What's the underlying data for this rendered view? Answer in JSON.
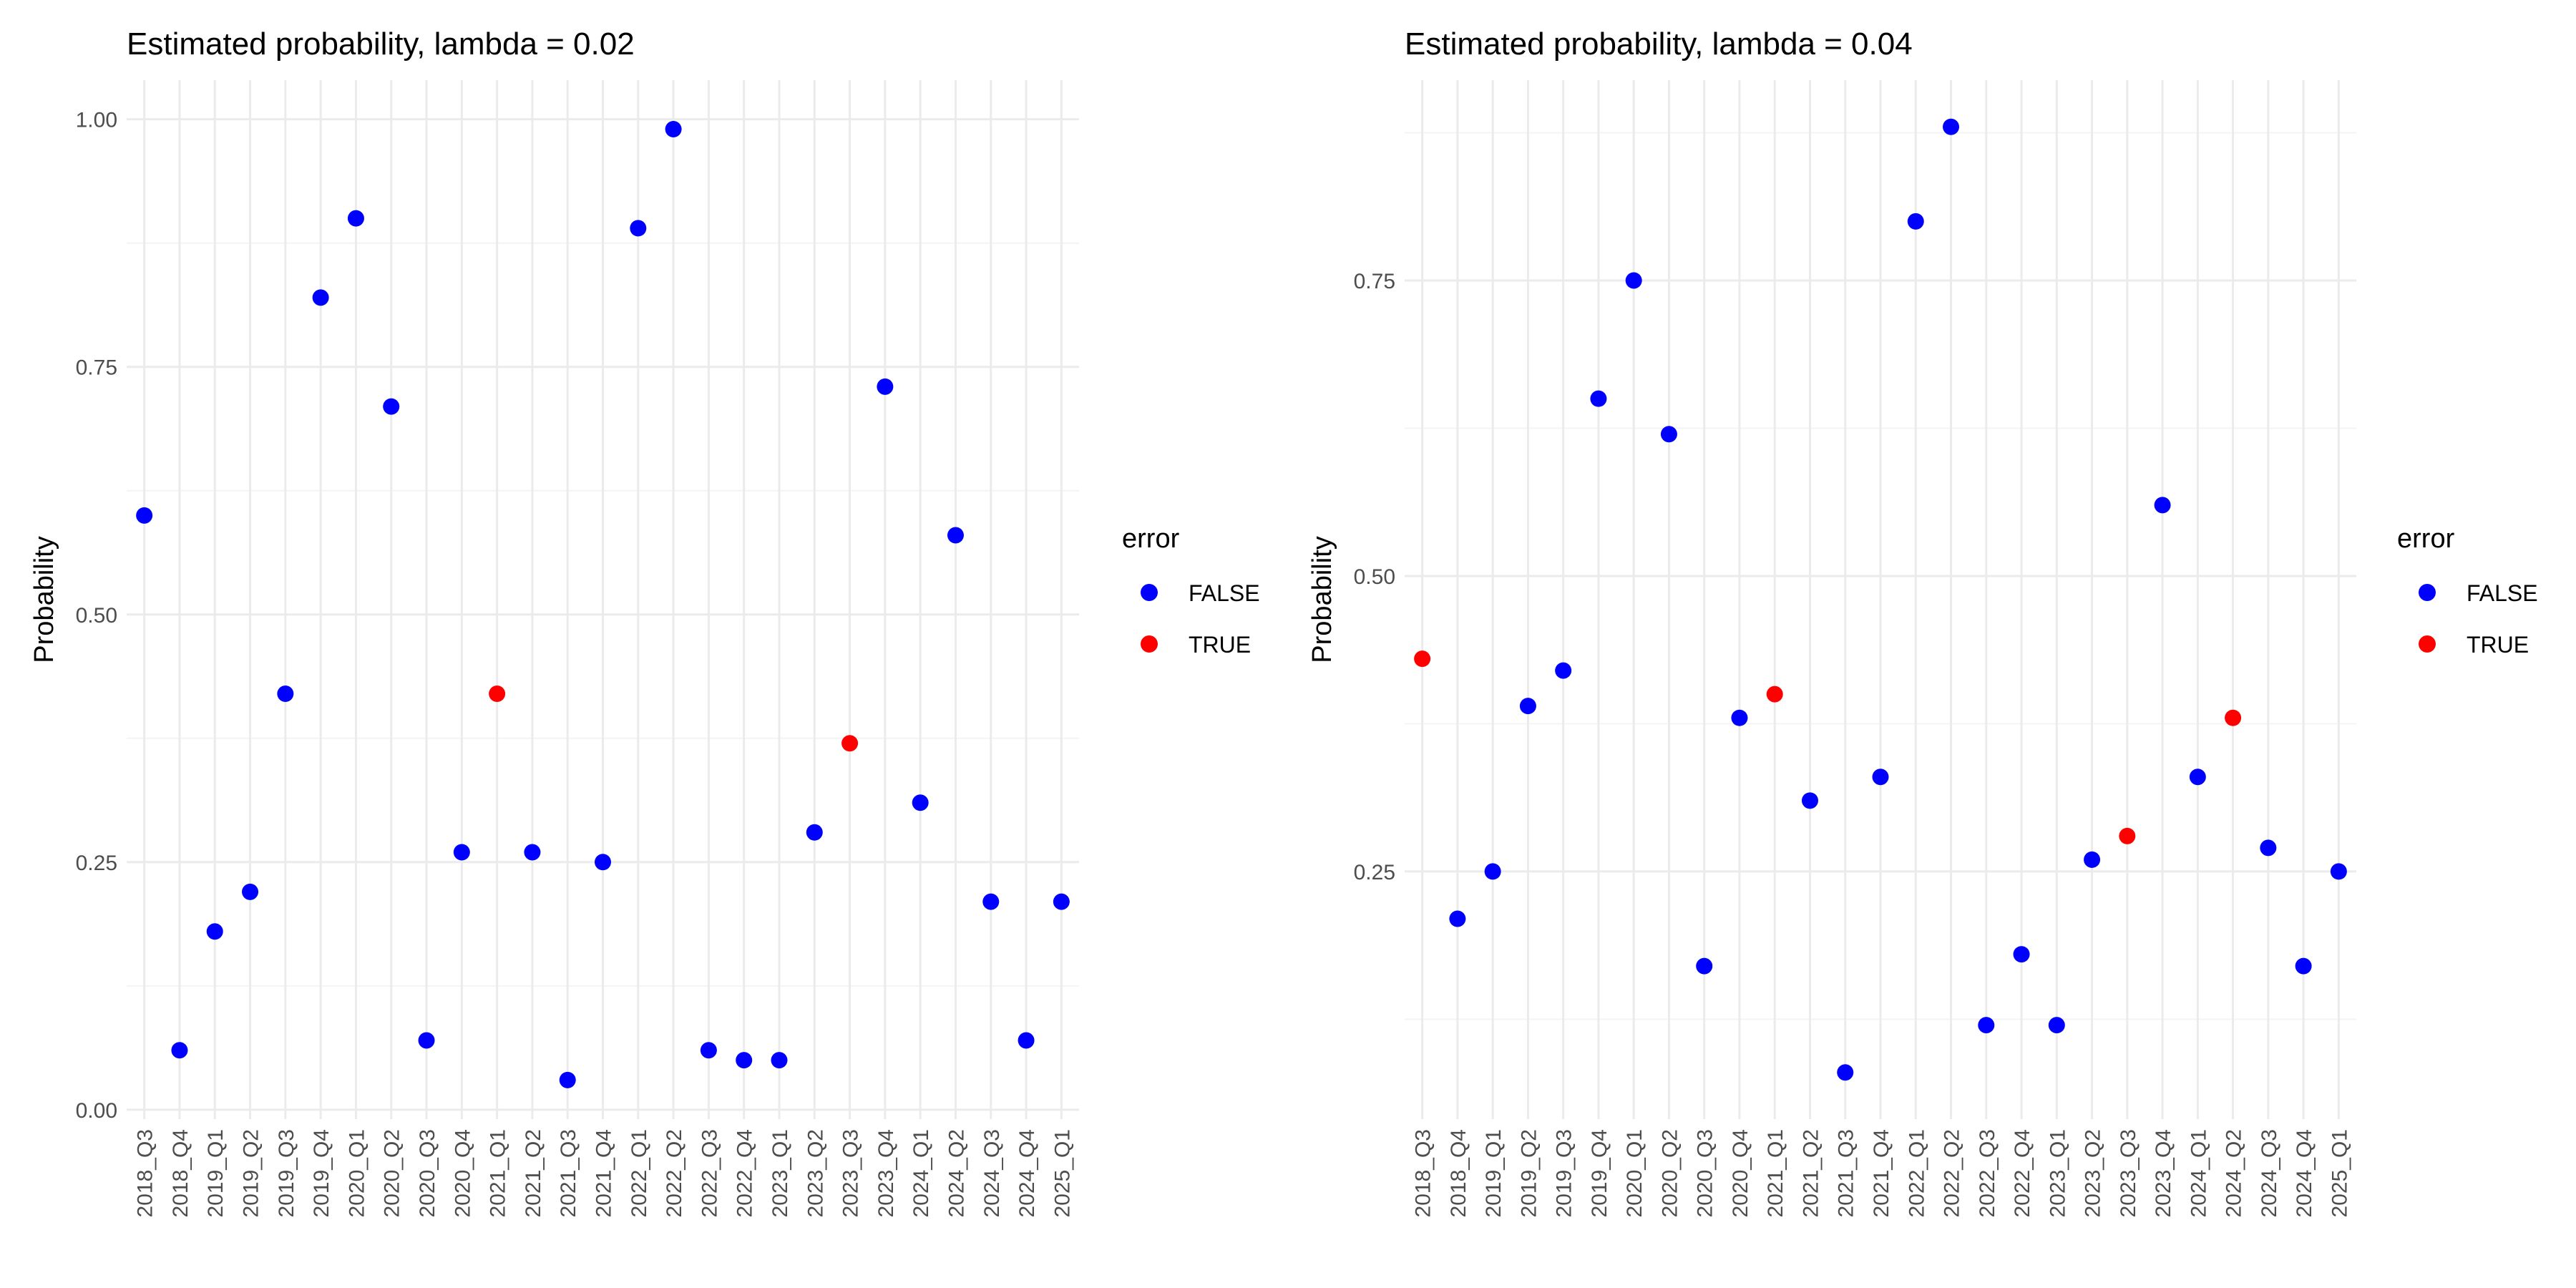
{
  "colors": {
    "FALSE": "#0000ff",
    "TRUE": "#ff0000",
    "grid_major": "#ebebeb",
    "grid_minor": "#f4f4f4",
    "tick_text": "#4d4d4d",
    "text": "#000000"
  },
  "chart_data": [
    {
      "type": "scatter",
      "title": "Estimated probability, lambda = 0.02",
      "xlabel": "",
      "ylabel": "Probability",
      "legend": {
        "title": "error",
        "entries": [
          "FALSE",
          "TRUE"
        ],
        "placement": "right"
      },
      "grid": true,
      "categories": [
        "2018_Q3",
        "2018_Q4",
        "2019_Q1",
        "2019_Q2",
        "2019_Q3",
        "2019_Q4",
        "2020_Q1",
        "2020_Q2",
        "2020_Q3",
        "2020_Q4",
        "2021_Q1",
        "2021_Q2",
        "2021_Q3",
        "2021_Q4",
        "2022_Q1",
        "2022_Q2",
        "2022_Q3",
        "2022_Q4",
        "2023_Q1",
        "2023_Q2",
        "2023_Q3",
        "2023_Q4",
        "2024_Q1",
        "2024_Q2",
        "2024_Q3",
        "2024_Q4",
        "2025_Q1"
      ],
      "values": [
        0.6,
        0.06,
        0.18,
        0.22,
        0.42,
        0.82,
        0.9,
        0.71,
        0.07,
        0.26,
        0.42,
        0.26,
        0.03,
        0.25,
        0.89,
        0.99,
        0.06,
        0.05,
        0.05,
        0.28,
        0.37,
        0.73,
        0.31,
        0.58,
        0.21,
        0.07,
        0.21
      ],
      "error": [
        false,
        false,
        false,
        false,
        false,
        false,
        false,
        false,
        false,
        false,
        true,
        false,
        false,
        false,
        false,
        false,
        false,
        false,
        false,
        false,
        true,
        false,
        false,
        false,
        false,
        false,
        false
      ],
      "ylim": [
        -0.0095,
        1.0395
      ],
      "yticks": [
        0.0,
        0.25,
        0.5,
        0.75,
        1.0
      ],
      "ytick_labels": [
        "0.00",
        "0.25",
        "0.50",
        "0.75",
        "1.00"
      ]
    },
    {
      "type": "scatter",
      "title": "Estimated probability, lambda = 0.04",
      "xlabel": "",
      "ylabel": "Probability",
      "legend": {
        "title": "error",
        "entries": [
          "FALSE",
          "TRUE"
        ],
        "placement": "right"
      },
      "grid": true,
      "categories": [
        "2018_Q3",
        "2018_Q4",
        "2019_Q1",
        "2019_Q2",
        "2019_Q3",
        "2019_Q4",
        "2020_Q1",
        "2020_Q2",
        "2020_Q3",
        "2020_Q4",
        "2021_Q1",
        "2021_Q2",
        "2021_Q3",
        "2021_Q4",
        "2022_Q1",
        "2022_Q2",
        "2022_Q3",
        "2022_Q4",
        "2023_Q1",
        "2023_Q2",
        "2023_Q3",
        "2023_Q4",
        "2024_Q1",
        "2024_Q2",
        "2024_Q3",
        "2024_Q4",
        "2025_Q1"
      ],
      "values": [
        0.43,
        0.21,
        0.25,
        0.39,
        0.42,
        0.65,
        0.75,
        0.62,
        0.17,
        0.38,
        0.4,
        0.31,
        0.08,
        0.33,
        0.8,
        0.88,
        0.12,
        0.18,
        0.12,
        0.26,
        0.28,
        0.56,
        0.33,
        0.38,
        0.27,
        0.17,
        0.25
      ],
      "error": [
        true,
        false,
        false,
        false,
        false,
        false,
        false,
        false,
        false,
        false,
        true,
        false,
        false,
        false,
        false,
        false,
        false,
        false,
        false,
        false,
        true,
        false,
        false,
        true,
        false,
        false,
        false
      ],
      "ylim": [
        0.0405,
        0.9195
      ],
      "yticks": [
        0.25,
        0.5,
        0.75
      ],
      "ytick_labels": [
        "0.25",
        "0.50",
        "0.75"
      ]
    }
  ]
}
